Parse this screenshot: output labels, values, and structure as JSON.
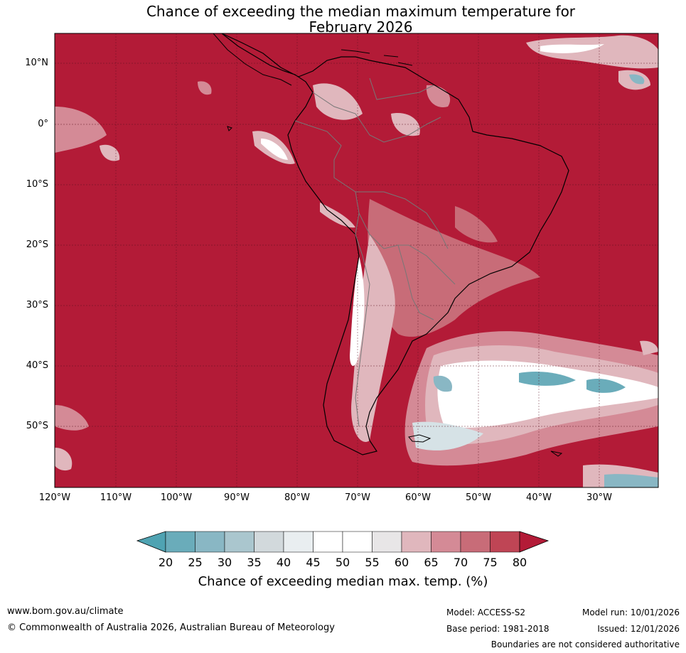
{
  "title_line1": "Chance of exceeding the median maximum temperature for",
  "title_line2": "February 2026",
  "lat_labels": [
    "10°N",
    "0°",
    "10°S",
    "20°S",
    "30°S",
    "40°S",
    "50°S"
  ],
  "lon_labels": [
    "120°W",
    "110°W",
    "100°W",
    "90°W",
    "80°W",
    "70°W",
    "60°W",
    "50°W",
    "40°W",
    "30°W"
  ],
  "legend": {
    "title": "Chance of exceeding median max. temp. (%)",
    "ticks": [
      "20",
      "25",
      "30",
      "35",
      "40",
      "45",
      "50",
      "55",
      "60",
      "65",
      "70",
      "75",
      "80"
    ],
    "colors": [
      "#4fa3b2",
      "#6aacba",
      "#89b7c4",
      "#aac6ce",
      "#d2d9dc",
      "#e9eef0",
      "#ffffff",
      "#ffffff",
      "#e8e6e7",
      "#e0b7bd",
      "#d48a96",
      "#c86c78",
      "#bf4555",
      "#b31b37"
    ]
  },
  "footer": {
    "website": "www.bom.gov.au/climate",
    "copyright": "© Commonwealth of Australia 2026, Australian Bureau of Meteorology",
    "model": "Model: ACCESS-S2",
    "base_period": "Base period: 1981-2018",
    "model_run": "Model run: 10/01/2026",
    "issued": "Issued: 12/01/2026",
    "disclaimer": "Boundaries are not considered authoritative"
  }
}
